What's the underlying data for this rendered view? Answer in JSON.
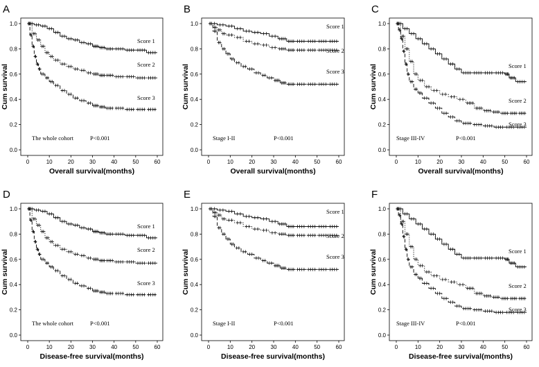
{
  "chart_data": [
    {
      "panel": "A",
      "type": "line",
      "subtype": "kaplan-meier",
      "xlabel": "Overall survival(months)",
      "ylabel": "Cum survival",
      "xlim": [
        0,
        60
      ],
      "ylim": [
        0,
        1
      ],
      "xticks": [
        "0",
        "10",
        "20",
        "30",
        "40",
        "50",
        "60"
      ],
      "yticks": [
        "0.0",
        "0.2",
        "0.4",
        "0.6",
        "0.8",
        "1.0"
      ],
      "annotation": "The whole cohort",
      "p_value": "P<0.001",
      "series": [
        {
          "name": "Score 1",
          "style": "solid",
          "x": [
            0,
            3,
            6,
            9,
            12,
            15,
            18,
            21,
            24,
            27,
            30,
            33,
            36,
            40,
            45,
            50,
            55,
            60
          ],
          "y": [
            1.0,
            0.99,
            0.98,
            0.96,
            0.93,
            0.9,
            0.88,
            0.87,
            0.85,
            0.84,
            0.82,
            0.81,
            0.8,
            0.8,
            0.79,
            0.79,
            0.77,
            0.77
          ]
        },
        {
          "name": "Score 2",
          "style": "dotted",
          "x": [
            0,
            2,
            4,
            6,
            8,
            10,
            12,
            15,
            18,
            21,
            24,
            27,
            30,
            33,
            36,
            40,
            45,
            50,
            55,
            60
          ],
          "y": [
            1.0,
            0.92,
            0.87,
            0.82,
            0.77,
            0.74,
            0.71,
            0.68,
            0.66,
            0.64,
            0.63,
            0.61,
            0.6,
            0.59,
            0.59,
            0.58,
            0.58,
            0.57,
            0.57,
            0.57
          ]
        },
        {
          "name": "Score 3",
          "style": "dashed",
          "x": [
            0,
            1,
            2,
            3,
            4,
            5,
            6,
            8,
            10,
            12,
            15,
            18,
            21,
            24,
            27,
            30,
            33,
            36,
            40,
            45,
            50,
            55,
            60
          ],
          "y": [
            1.0,
            0.91,
            0.82,
            0.74,
            0.68,
            0.64,
            0.6,
            0.57,
            0.54,
            0.51,
            0.47,
            0.44,
            0.41,
            0.39,
            0.37,
            0.35,
            0.34,
            0.33,
            0.33,
            0.32,
            0.32,
            0.32,
            0.32
          ]
        }
      ]
    },
    {
      "panel": "B",
      "type": "line",
      "subtype": "kaplan-meier",
      "xlabel": "Overall survival(months)",
      "ylabel": "Cum survival",
      "xlim": [
        0,
        60
      ],
      "ylim": [
        0,
        1
      ],
      "xticks": [
        "0",
        "10",
        "20",
        "30",
        "40",
        "50",
        "60"
      ],
      "yticks": [
        "0.0",
        "0.2",
        "0.4",
        "0.6",
        "0.8",
        "1.0"
      ],
      "annotation": "Stage I-II",
      "p_value": "P<0.001",
      "series": [
        {
          "name": "Score 1",
          "style": "solid",
          "x": [
            0,
            4,
            8,
            12,
            16,
            20,
            24,
            28,
            32,
            36,
            40,
            45,
            50,
            55,
            60
          ],
          "y": [
            1.0,
            0.99,
            0.98,
            0.96,
            0.94,
            0.93,
            0.92,
            0.9,
            0.88,
            0.86,
            0.86,
            0.86,
            0.86,
            0.86,
            0.86
          ]
        },
        {
          "name": "Score 2",
          "style": "dotted",
          "x": [
            0,
            2,
            4,
            6,
            8,
            12,
            16,
            20,
            24,
            28,
            32,
            36,
            40,
            45,
            50,
            55,
            60
          ],
          "y": [
            1.0,
            0.97,
            0.95,
            0.92,
            0.91,
            0.89,
            0.86,
            0.84,
            0.83,
            0.81,
            0.8,
            0.79,
            0.79,
            0.79,
            0.79,
            0.79,
            0.79
          ]
        },
        {
          "name": "Score 3",
          "style": "dashed",
          "x": [
            0,
            2,
            4,
            6,
            8,
            10,
            12,
            15,
            18,
            21,
            24,
            27,
            30,
            33,
            36,
            40,
            45,
            50,
            55,
            60
          ],
          "y": [
            1.0,
            0.94,
            0.85,
            0.8,
            0.76,
            0.72,
            0.69,
            0.66,
            0.64,
            0.61,
            0.59,
            0.57,
            0.55,
            0.53,
            0.52,
            0.52,
            0.52,
            0.52,
            0.52,
            0.52
          ]
        }
      ]
    },
    {
      "panel": "C",
      "type": "line",
      "subtype": "kaplan-meier",
      "xlabel": "Overall survival(months)",
      "ylabel": "Cum survival",
      "xlim": [
        0,
        60
      ],
      "ylim": [
        0,
        1
      ],
      "xticks": [
        "0",
        "10",
        "20",
        "30",
        "40",
        "50",
        "60"
      ],
      "yticks": [
        "0.0",
        "0.2",
        "0.4",
        "0.6",
        "0.8",
        "1.0"
      ],
      "annotation": "Stage III-IV",
      "p_value": "P<0.001",
      "series": [
        {
          "name": "Score 1",
          "style": "solid",
          "x": [
            0,
            3,
            6,
            9,
            12,
            15,
            18,
            21,
            24,
            27,
            30,
            35,
            40,
            45,
            50,
            52,
            55,
            60
          ],
          "y": [
            1.0,
            0.96,
            0.92,
            0.88,
            0.84,
            0.8,
            0.76,
            0.72,
            0.68,
            0.64,
            0.61,
            0.61,
            0.61,
            0.61,
            0.6,
            0.57,
            0.54,
            0.54
          ]
        },
        {
          "name": "Score 2",
          "style": "dotted",
          "x": [
            0,
            2,
            4,
            6,
            8,
            10,
            13,
            16,
            20,
            24,
            28,
            32,
            36,
            40,
            44,
            48,
            52,
            56,
            60
          ],
          "y": [
            1.0,
            0.9,
            0.8,
            0.7,
            0.6,
            0.55,
            0.5,
            0.47,
            0.44,
            0.42,
            0.4,
            0.37,
            0.33,
            0.31,
            0.3,
            0.29,
            0.29,
            0.29,
            0.29
          ]
        },
        {
          "name": "Score 3",
          "style": "dashed",
          "x": [
            0,
            1,
            2,
            3,
            4,
            5,
            6,
            8,
            10,
            12,
            15,
            18,
            21,
            24,
            27,
            30,
            35,
            40,
            45,
            50,
            55,
            60
          ],
          "y": [
            1.0,
            0.95,
            0.88,
            0.78,
            0.68,
            0.6,
            0.54,
            0.48,
            0.45,
            0.41,
            0.37,
            0.33,
            0.29,
            0.26,
            0.23,
            0.21,
            0.2,
            0.19,
            0.18,
            0.18,
            0.18,
            0.18
          ]
        }
      ]
    },
    {
      "panel": "D",
      "type": "line",
      "subtype": "kaplan-meier",
      "xlabel": "Disease-free survival(months)",
      "ylabel": "Cum survival",
      "xlim": [
        0,
        60
      ],
      "ylim": [
        0,
        1
      ],
      "xticks": [
        "0",
        "10",
        "20",
        "30",
        "40",
        "50",
        "60"
      ],
      "yticks": [
        "0.0",
        "0.2",
        "0.4",
        "0.6",
        "0.8",
        "1.0"
      ],
      "annotation": "The whole cohort",
      "p_value": "P<0.001",
      "series": [
        {
          "name": "Score 1",
          "style": "solid",
          "x": [
            0,
            3,
            6,
            9,
            12,
            15,
            18,
            21,
            24,
            27,
            30,
            33,
            36,
            40,
            45,
            50,
            55,
            60
          ],
          "y": [
            1.0,
            0.99,
            0.98,
            0.96,
            0.93,
            0.9,
            0.88,
            0.87,
            0.85,
            0.84,
            0.82,
            0.81,
            0.8,
            0.8,
            0.79,
            0.79,
            0.77,
            0.77
          ]
        },
        {
          "name": "Score 2",
          "style": "dotted",
          "x": [
            0,
            2,
            4,
            6,
            8,
            10,
            12,
            15,
            18,
            21,
            24,
            27,
            30,
            33,
            36,
            40,
            45,
            50,
            55,
            60
          ],
          "y": [
            1.0,
            0.92,
            0.87,
            0.82,
            0.77,
            0.74,
            0.71,
            0.68,
            0.66,
            0.64,
            0.63,
            0.61,
            0.6,
            0.59,
            0.59,
            0.58,
            0.58,
            0.57,
            0.57,
            0.57
          ]
        },
        {
          "name": "Score 3",
          "style": "dashed",
          "x": [
            0,
            1,
            2,
            3,
            4,
            5,
            6,
            8,
            10,
            12,
            15,
            18,
            21,
            24,
            27,
            30,
            33,
            36,
            40,
            45,
            50,
            55,
            60
          ],
          "y": [
            1.0,
            0.91,
            0.82,
            0.74,
            0.68,
            0.64,
            0.6,
            0.57,
            0.54,
            0.51,
            0.47,
            0.44,
            0.41,
            0.39,
            0.37,
            0.35,
            0.34,
            0.33,
            0.33,
            0.32,
            0.32,
            0.32,
            0.32
          ]
        }
      ]
    },
    {
      "panel": "E",
      "type": "line",
      "subtype": "kaplan-meier",
      "xlabel": "Disease-free survival(months)",
      "ylabel": "Cum survival",
      "xlim": [
        0,
        60
      ],
      "ylim": [
        0,
        1
      ],
      "xticks": [
        "0",
        "10",
        "20",
        "30",
        "40",
        "50",
        "60"
      ],
      "yticks": [
        "0.0",
        "0.2",
        "0.4",
        "0.6",
        "0.8",
        "1.0"
      ],
      "annotation": "Stage I-II",
      "p_value": "P<0.001",
      "series": [
        {
          "name": "Score 1",
          "style": "solid",
          "x": [
            0,
            4,
            8,
            12,
            16,
            20,
            24,
            28,
            32,
            36,
            40,
            45,
            50,
            55,
            60
          ],
          "y": [
            1.0,
            0.99,
            0.98,
            0.96,
            0.94,
            0.93,
            0.92,
            0.9,
            0.88,
            0.86,
            0.86,
            0.86,
            0.86,
            0.86,
            0.86
          ]
        },
        {
          "name": "Score 2",
          "style": "dotted",
          "x": [
            0,
            2,
            4,
            6,
            8,
            12,
            16,
            20,
            24,
            28,
            32,
            36,
            40,
            45,
            50,
            55,
            60
          ],
          "y": [
            1.0,
            0.97,
            0.95,
            0.92,
            0.91,
            0.89,
            0.86,
            0.84,
            0.83,
            0.81,
            0.8,
            0.79,
            0.79,
            0.79,
            0.79,
            0.79,
            0.79
          ]
        },
        {
          "name": "Score 3",
          "style": "dashed",
          "x": [
            0,
            2,
            4,
            6,
            8,
            10,
            12,
            15,
            18,
            21,
            24,
            27,
            30,
            33,
            36,
            40,
            45,
            50,
            55,
            60
          ],
          "y": [
            1.0,
            0.94,
            0.85,
            0.8,
            0.76,
            0.72,
            0.69,
            0.66,
            0.64,
            0.61,
            0.59,
            0.57,
            0.55,
            0.53,
            0.52,
            0.52,
            0.52,
            0.52,
            0.52,
            0.52
          ]
        }
      ]
    },
    {
      "panel": "F",
      "type": "line",
      "subtype": "kaplan-meier",
      "xlabel": "Disease-free survival(months)",
      "ylabel": "Cum survival",
      "xlim": [
        0,
        60
      ],
      "ylim": [
        0,
        1
      ],
      "xticks": [
        "0",
        "10",
        "20",
        "30",
        "40",
        "50",
        "60"
      ],
      "yticks": [
        "0.0",
        "0.2",
        "0.4",
        "0.6",
        "0.8",
        "1.0"
      ],
      "annotation": "Stage III-IV",
      "p_value": "P<0.001",
      "series": [
        {
          "name": "Score 1",
          "style": "solid",
          "x": [
            0,
            3,
            6,
            9,
            12,
            15,
            18,
            21,
            24,
            27,
            30,
            35,
            40,
            45,
            50,
            52,
            55,
            60
          ],
          "y": [
            1.0,
            0.96,
            0.92,
            0.88,
            0.84,
            0.8,
            0.76,
            0.72,
            0.68,
            0.64,
            0.61,
            0.61,
            0.61,
            0.61,
            0.6,
            0.57,
            0.54,
            0.54
          ]
        },
        {
          "name": "Score 2",
          "style": "dotted",
          "x": [
            0,
            2,
            4,
            6,
            8,
            10,
            13,
            16,
            20,
            24,
            28,
            32,
            36,
            40,
            44,
            48,
            52,
            56,
            60
          ],
          "y": [
            1.0,
            0.9,
            0.8,
            0.7,
            0.6,
            0.55,
            0.5,
            0.47,
            0.44,
            0.42,
            0.4,
            0.37,
            0.33,
            0.31,
            0.3,
            0.29,
            0.29,
            0.29,
            0.29
          ]
        },
        {
          "name": "Score 3",
          "style": "dashed",
          "x": [
            0,
            1,
            2,
            3,
            4,
            5,
            6,
            8,
            10,
            12,
            15,
            18,
            21,
            24,
            27,
            30,
            35,
            40,
            45,
            50,
            55,
            60
          ],
          "y": [
            1.0,
            0.95,
            0.88,
            0.78,
            0.68,
            0.6,
            0.54,
            0.48,
            0.45,
            0.41,
            0.37,
            0.33,
            0.29,
            0.26,
            0.23,
            0.21,
            0.2,
            0.19,
            0.18,
            0.18,
            0.18,
            0.18
          ]
        }
      ]
    }
  ]
}
